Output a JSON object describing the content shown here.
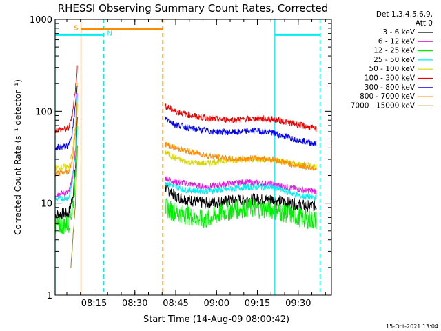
{
  "chart_data": {
    "type": "line",
    "title": "RHESSI Observing Summary Count Rates, Corrected",
    "xlabel": "Start Time (14-Aug-09 08:00:42)",
    "ylabel": "Corrected Count Rate (s⁻¹ detector⁻¹)",
    "yscale": "log",
    "ylim": [
      1,
      1000
    ],
    "xlim_minutes": [
      0,
      101.5
    ],
    "x_ticks": [
      {
        "m": 14.3,
        "label": "08:15"
      },
      {
        "m": 29.3,
        "label": "08:30"
      },
      {
        "m": 44.3,
        "label": "08:45"
      },
      {
        "m": 59.3,
        "label": "09:00"
      },
      {
        "m": 74.3,
        "label": "09:15"
      },
      {
        "m": 89.3,
        "label": "09:30"
      }
    ],
    "y_ticks": [
      {
        "v": 1,
        "label": "1"
      },
      {
        "v": 10,
        "label": "10"
      },
      {
        "v": 100,
        "label": "100"
      },
      {
        "v": 1000,
        "label": "1000"
      }
    ],
    "legend": {
      "header": [
        "Det 1,3,4,5,6,9,",
        "Att 0"
      ],
      "position": "right"
    },
    "series": [
      {
        "name": "3 - 6 keV",
        "color": "#000000",
        "pts": [
          [
            0,
            7.5
          ],
          [
            5,
            7.8
          ],
          [
            6.5,
            12
          ],
          [
            7.5,
            25
          ],
          [
            8.2,
            100
          ],
          [
            40.4,
            15
          ],
          [
            44,
            12
          ],
          [
            48,
            11
          ],
          [
            55,
            10
          ],
          [
            62,
            10.5
          ],
          [
            70,
            11
          ],
          [
            80,
            11
          ],
          [
            90,
            9.5
          ],
          [
            96,
            9.3
          ]
        ]
      },
      {
        "name": "6 - 12 keV",
        "color": "#e01ee0",
        "pts": [
          [
            0,
            12.5
          ],
          [
            5,
            13
          ],
          [
            6.5,
            20
          ],
          [
            7.5,
            40
          ],
          [
            8.2,
            170
          ],
          [
            40.4,
            19
          ],
          [
            44,
            17
          ],
          [
            48,
            16.5
          ],
          [
            55,
            15
          ],
          [
            62,
            16
          ],
          [
            70,
            17
          ],
          [
            80,
            16
          ],
          [
            90,
            14
          ],
          [
            96,
            13.5
          ]
        ]
      },
      {
        "name": "12 - 25 keV",
        "color": "#00ee00",
        "pts": [
          [
            0,
            5.5
          ],
          [
            5,
            6
          ],
          [
            6.5,
            9
          ],
          [
            7.5,
            20
          ],
          [
            8.2,
            90
          ],
          [
            40.4,
            9
          ],
          [
            44,
            8
          ],
          [
            48,
            7.5
          ],
          [
            55,
            6.5
          ],
          [
            62,
            8
          ],
          [
            70,
            9
          ],
          [
            80,
            8.5
          ],
          [
            90,
            7
          ],
          [
            96,
            6.5
          ]
        ]
      },
      {
        "name": "25 - 50 keV",
        "color": "#00eeee",
        "pts": [
          [
            0,
            11
          ],
          [
            5,
            11.5
          ],
          [
            6.5,
            18
          ],
          [
            7.5,
            35
          ],
          [
            8.2,
            150
          ],
          [
            40.4,
            17
          ],
          [
            44,
            15
          ],
          [
            48,
            14
          ],
          [
            55,
            13.5
          ],
          [
            62,
            14
          ],
          [
            70,
            15
          ],
          [
            80,
            15
          ],
          [
            90,
            12
          ],
          [
            96,
            11.5
          ]
        ]
      },
      {
        "name": "50 - 100 keV",
        "color": "#d8d800",
        "pts": [
          [
            0,
            24
          ],
          [
            5,
            25
          ],
          [
            6.5,
            38
          ],
          [
            7.5,
            75
          ],
          [
            8.2,
            200
          ],
          [
            40.4,
            36
          ],
          [
            44,
            31
          ],
          [
            48,
            28
          ],
          [
            55,
            27
          ],
          [
            62,
            29
          ],
          [
            70,
            30
          ],
          [
            80,
            30
          ],
          [
            90,
            26
          ],
          [
            96,
            25
          ]
        ]
      },
      {
        "name": "100 - 300 keV",
        "color": "#ee0000",
        "pts": [
          [
            0,
            62
          ],
          [
            5,
            65
          ],
          [
            6.5,
            100
          ],
          [
            7.5,
            180
          ],
          [
            8.2,
            310
          ],
          [
            40.4,
            115
          ],
          [
            44,
            100
          ],
          [
            50,
            90
          ],
          [
            58,
            82
          ],
          [
            66,
            81
          ],
          [
            74,
            83
          ],
          [
            80,
            82
          ],
          [
            88,
            73
          ],
          [
            96,
            64
          ]
        ]
      },
      {
        "name": "300 - 800 keV",
        "color": "#0000ee",
        "pts": [
          [
            0,
            40
          ],
          [
            5,
            42
          ],
          [
            6.5,
            65
          ],
          [
            7.5,
            120
          ],
          [
            8.2,
            200
          ],
          [
            40.4,
            85
          ],
          [
            44,
            72
          ],
          [
            50,
            65
          ],
          [
            58,
            60
          ],
          [
            66,
            59
          ],
          [
            74,
            62
          ],
          [
            80,
            58
          ],
          [
            88,
            50
          ],
          [
            96,
            44
          ]
        ]
      },
      {
        "name": "800 - 7000 keV",
        "color": "#ff8c00",
        "pts": [
          [
            0,
            21
          ],
          [
            5,
            22
          ],
          [
            6.5,
            32
          ],
          [
            7.5,
            60
          ],
          [
            8.2,
            120
          ],
          [
            40.4,
            44
          ],
          [
            44,
            40
          ],
          [
            50,
            36
          ],
          [
            58,
            32
          ],
          [
            66,
            30
          ],
          [
            74,
            31
          ],
          [
            80,
            30
          ],
          [
            88,
            26
          ],
          [
            96,
            24
          ]
        ]
      },
      {
        "name": "7000 - 15000 keV",
        "color": "#8b7a00",
        "pts": [
          [
            5.8,
            2
          ],
          [
            6.5,
            4
          ],
          [
            7.5,
            10
          ],
          [
            8.2,
            40
          ]
        ]
      }
    ],
    "attenuator_bar": {
      "label": "S",
      "color": "#ff8c00",
      "start_m": 9.5,
      "end_m": 39.5,
      "level": 780
    },
    "night_bars": [
      {
        "label": "N",
        "start_m": 0,
        "end_m": 17.8,
        "level": 680
      },
      {
        "label": "",
        "start_m": 80.7,
        "end_m": 97.3,
        "level": 680
      }
    ],
    "boundary_lines": [
      {
        "m": 9.5,
        "color": "#ff8c00",
        "style": "solid"
      },
      {
        "m": 39.5,
        "color": "#ff8c00",
        "style": "dashed"
      },
      {
        "m": 0,
        "color": "#00eeee",
        "style": "solid"
      },
      {
        "m": 17.8,
        "color": "#00eeee",
        "style": "dashed"
      },
      {
        "m": 80.7,
        "color": "#00eeee",
        "style": "solid"
      },
      {
        "m": 97.3,
        "color": "#00eeee",
        "style": "dashed"
      }
    ],
    "footer_date": "15-Oct-2021 13:04"
  }
}
